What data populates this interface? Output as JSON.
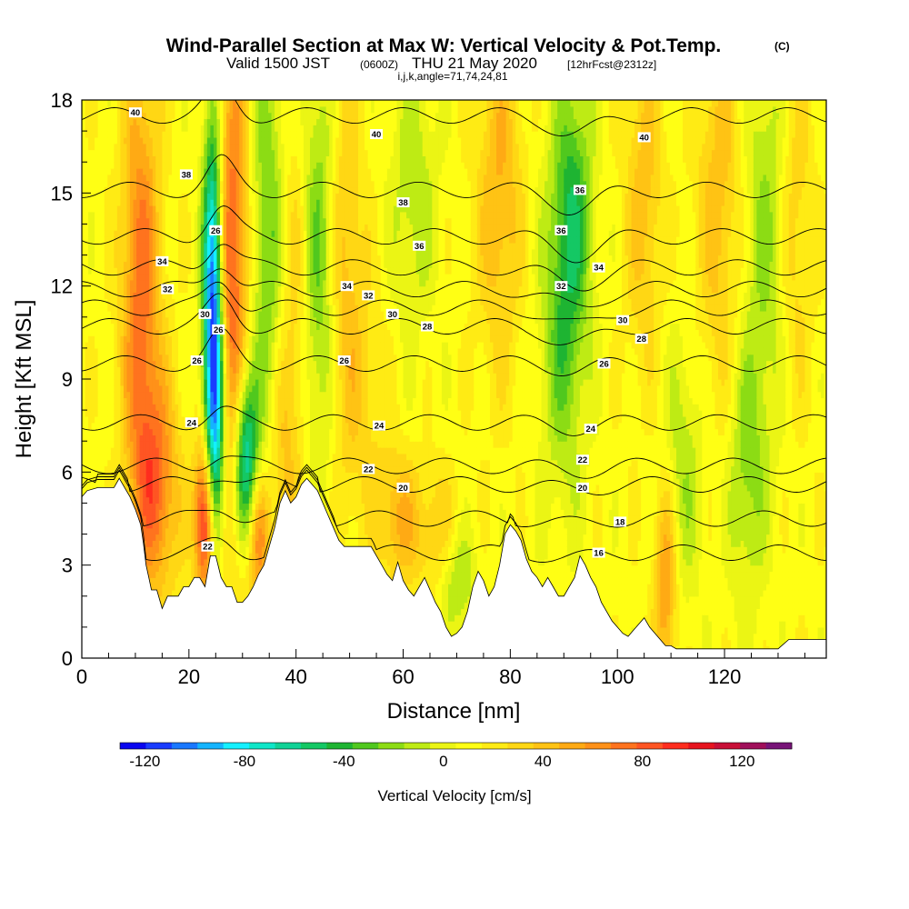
{
  "header": {
    "title": "Wind-Parallel Section at Max W: Vertical Velocity & Pot.Temp.",
    "copyright_mark": "(C)",
    "valid_prefix": "Valid 1500 JST",
    "valid_utc": "(0600Z)",
    "valid_date": "THU 21 May 2020",
    "forecast_info": "[12hrFcst@2312z]",
    "indices": "i,j,k,angle=71,74,24,81"
  },
  "colors": {
    "velocity_scale": [
      "#0a06f0",
      "#1a3cff",
      "#1a78ff",
      "#14b4ff",
      "#14f0ff",
      "#0ee6c8",
      "#10d296",
      "#14c864",
      "#1eb432",
      "#50c81e",
      "#8cdc14",
      "#beeb14",
      "#ebf514",
      "#ffff14",
      "#ffeb14",
      "#ffd714",
      "#ffc314",
      "#ffaa14",
      "#ff9119",
      "#ff731e",
      "#ff5523",
      "#ff2d1e",
      "#e6141e",
      "#c80f37",
      "#a00f5a",
      "#781478"
    ],
    "contour_line": "#000000",
    "terrain": "#ffffff"
  },
  "chart_data": {
    "type": "heatmap",
    "xlabel": "Distance [nm]",
    "ylabel": "Height [Kft MSL]",
    "xlim": [
      0,
      139
    ],
    "ylim": [
      0,
      18
    ],
    "x_ticks": [
      0,
      20,
      40,
      60,
      80,
      100,
      120
    ],
    "y_ticks": [
      0,
      3,
      6,
      9,
      12,
      15,
      18
    ],
    "colorbar": {
      "label": "Vertical Velocity [cm/s]",
      "range": [
        -130,
        140
      ],
      "step": 10,
      "tick_values": [
        -120,
        -80,
        -40,
        0,
        40,
        80,
        120
      ],
      "tick_labels": [
        "-120",
        "-80",
        "-40",
        "0",
        "40",
        "80",
        "120"
      ]
    },
    "velocity_features": [
      {
        "x": 11,
        "z": 12,
        "w": 60,
        "sx": 2.5,
        "sz": 5
      },
      {
        "x": 14,
        "z": 5.5,
        "w": 55,
        "sx": 3,
        "sz": 2.5
      },
      {
        "x": 23,
        "z": 4.5,
        "w": 100,
        "sx": 1.3,
        "sz": 1.8
      },
      {
        "x": 24.5,
        "z": 12,
        "w": -115,
        "sx": 1.3,
        "sz": 4
      },
      {
        "x": 25,
        "z": 7,
        "w": -75,
        "sx": 1.4,
        "sz": 3
      },
      {
        "x": 28,
        "z": 12,
        "w": 70,
        "sx": 2.2,
        "sz": 6
      },
      {
        "x": 30.5,
        "z": 6.5,
        "w": -90,
        "sx": 1.6,
        "sz": 2
      },
      {
        "x": 33,
        "z": 3.8,
        "w": 55,
        "sx": 1.5,
        "sz": 1.5
      },
      {
        "x": 35,
        "z": 13,
        "w": -40,
        "sx": 2.5,
        "sz": 6
      },
      {
        "x": 37,
        "z": 6,
        "w": 30,
        "sx": 2,
        "sz": 3
      },
      {
        "x": 40,
        "z": 12,
        "w": 30,
        "sx": 2.5,
        "sz": 5
      },
      {
        "x": 44,
        "z": 13,
        "w": -45,
        "sx": 2.5,
        "sz": 5
      },
      {
        "x": 49,
        "z": 13,
        "w": 30,
        "sx": 2.5,
        "sz": 5
      },
      {
        "x": 53,
        "z": 8,
        "w": 15,
        "sx": 3,
        "sz": 3
      },
      {
        "x": 59,
        "z": 4.5,
        "w": 35,
        "sx": 2.5,
        "sz": 1.5
      },
      {
        "x": 62,
        "z": 15,
        "w": -25,
        "sx": 3,
        "sz": 3
      },
      {
        "x": 66,
        "z": 4,
        "w": 25,
        "sx": 3,
        "sz": 1.5
      },
      {
        "x": 70,
        "z": 2.5,
        "w": -30,
        "sx": 2.5,
        "sz": 1.2
      },
      {
        "x": 78,
        "z": 15,
        "w": 35,
        "sx": 3,
        "sz": 4
      },
      {
        "x": 90,
        "z": 11,
        "w": -40,
        "sx": 3,
        "sz": 4
      },
      {
        "x": 92,
        "z": 15,
        "w": -35,
        "sx": 2.5,
        "sz": 3
      },
      {
        "x": 105,
        "z": 15,
        "w": 30,
        "sx": 2.5,
        "sz": 4
      },
      {
        "x": 109,
        "z": 2.5,
        "w": 50,
        "sx": 1.5,
        "sz": 2.5
      },
      {
        "x": 112,
        "z": 6,
        "w": -25,
        "sx": 3,
        "sz": 3
      },
      {
        "x": 119,
        "z": 15,
        "w": 30,
        "sx": 3,
        "sz": 5
      },
      {
        "x": 124,
        "z": 6,
        "w": -30,
        "sx": 2.5,
        "sz": 3
      },
      {
        "x": 128,
        "z": 14,
        "w": -30,
        "sx": 3,
        "sz": 5
      },
      {
        "x": 133,
        "z": 14,
        "w": 25,
        "sx": 2.5,
        "sz": 4
      }
    ],
    "terrain_profile": {
      "x": [
        0,
        1,
        3,
        6,
        7,
        8,
        9,
        10,
        11,
        11.5,
        12,
        12.5,
        13,
        14,
        15,
        16,
        17,
        18,
        19,
        20,
        21,
        22,
        23,
        24,
        25,
        26,
        27,
        28,
        29,
        30,
        31,
        32,
        33,
        34,
        35,
        36,
        37,
        38,
        39,
        40,
        41,
        42,
        43,
        44,
        45,
        46,
        47,
        48,
        49,
        50,
        51,
        52,
        53,
        54,
        55,
        56,
        57,
        58,
        59,
        60,
        61,
        62,
        63,
        64,
        65,
        66,
        67,
        68,
        69,
        70,
        71,
        72,
        73,
        74,
        75,
        76,
        77,
        78,
        79,
        80,
        81,
        82,
        83,
        84,
        85,
        86,
        87,
        88,
        89,
        90,
        91,
        92,
        93,
        94,
        95,
        96,
        97,
        98,
        99,
        100,
        101,
        102,
        103,
        104,
        105,
        106,
        107,
        108,
        109,
        110,
        111,
        112,
        114,
        116,
        118,
        120,
        122,
        124,
        126,
        128,
        130,
        132,
        134,
        136,
        139
      ],
      "z": [
        5.2,
        5.4,
        5.5,
        5.5,
        5.8,
        5.5,
        5.2,
        4.8,
        4.3,
        3.7,
        3.0,
        2.6,
        2.2,
        2.2,
        1.6,
        2.0,
        2.0,
        2.0,
        2.3,
        2.3,
        2.6,
        2.6,
        2.3,
        3.3,
        3.3,
        2.6,
        2.3,
        2.3,
        1.8,
        1.8,
        2.0,
        2.3,
        2.7,
        3.0,
        3.6,
        4.2,
        5.0,
        5.4,
        5.0,
        5.2,
        5.6,
        5.8,
        5.6,
        5.4,
        5.0,
        4.6,
        4.2,
        3.8,
        3.6,
        3.6,
        3.6,
        3.6,
        3.6,
        3.6,
        3.3,
        3.0,
        2.7,
        2.5,
        3.1,
        2.5,
        2.2,
        2.0,
        2.3,
        2.6,
        2.2,
        1.8,
        1.5,
        1.0,
        0.7,
        0.8,
        1.0,
        1.5,
        2.3,
        2.8,
        2.5,
        2.0,
        2.3,
        3.0,
        4.0,
        4.3,
        4.1,
        3.8,
        3.2,
        2.8,
        2.6,
        2.3,
        2.6,
        2.3,
        2.0,
        2.0,
        2.3,
        2.6,
        3.3,
        3.0,
        2.6,
        2.3,
        1.8,
        1.5,
        1.2,
        1.0,
        0.8,
        0.7,
        0.9,
        1.1,
        1.3,
        1.0,
        0.8,
        0.6,
        0.4,
        0.4,
        0.3,
        0.3,
        0.3,
        0.3,
        0.3,
        0.3,
        0.3,
        0.3,
        0.3,
        0.3,
        0.3,
        0.6,
        0.6,
        0.6,
        0.6
      ]
    },
    "theta_contours": {
      "levels": [
        16,
        18,
        20,
        22,
        24,
        26,
        28,
        30,
        32,
        34,
        36,
        38,
        40
      ],
      "baseline_height": [
        3.4,
        4.5,
        5.6,
        6.2,
        7.6,
        9.5,
        10.7,
        11.3,
        11.9,
        12.6,
        13.6,
        15.1,
        17.5
      ],
      "label_points": [
        {
          "text": "40",
          "x": 10,
          "z": 17.6
        },
        {
          "text": "38",
          "x": 19.5,
          "z": 15.6
        },
        {
          "text": "34",
          "x": 15,
          "z": 12.8
        },
        {
          "text": "32",
          "x": 16,
          "z": 11.9
        },
        {
          "text": "30",
          "x": 23,
          "z": 11.1
        },
        {
          "text": "26",
          "x": 21.5,
          "z": 9.6
        },
        {
          "text": "24",
          "x": 20.5,
          "z": 7.6
        },
        {
          "text": "22",
          "x": 23.5,
          "z": 3.6
        },
        {
          "text": "26",
          "x": 25,
          "z": 13.8
        },
        {
          "text": "26",
          "x": 25.5,
          "z": 10.6
        },
        {
          "text": "40",
          "x": 55,
          "z": 16.9
        },
        {
          "text": "38",
          "x": 60,
          "z": 14.7
        },
        {
          "text": "36",
          "x": 63,
          "z": 13.3
        },
        {
          "text": "34",
          "x": 49.5,
          "z": 12.0
        },
        {
          "text": "32",
          "x": 53.5,
          "z": 11.7
        },
        {
          "text": "30",
          "x": 58,
          "z": 11.1
        },
        {
          "text": "28",
          "x": 64.5,
          "z": 10.7
        },
        {
          "text": "26",
          "x": 49,
          "z": 9.6
        },
        {
          "text": "24",
          "x": 55.5,
          "z": 7.5
        },
        {
          "text": "22",
          "x": 53.5,
          "z": 6.1
        },
        {
          "text": "20",
          "x": 60,
          "z": 5.5
        },
        {
          "text": "40",
          "x": 105,
          "z": 16.8
        },
        {
          "text": "36",
          "x": 93,
          "z": 15.1
        },
        {
          "text": "36",
          "x": 89.5,
          "z": 13.8
        },
        {
          "text": "34",
          "x": 96.5,
          "z": 12.6
        },
        {
          "text": "32",
          "x": 89.5,
          "z": 12.0
        },
        {
          "text": "30",
          "x": 101,
          "z": 10.9
        },
        {
          "text": "28",
          "x": 104.5,
          "z": 10.3
        },
        {
          "text": "26",
          "x": 97.5,
          "z": 9.5
        },
        {
          "text": "24",
          "x": 95,
          "z": 7.4
        },
        {
          "text": "22",
          "x": 93.5,
          "z": 6.4
        },
        {
          "text": "20",
          "x": 93.5,
          "z": 5.5
        },
        {
          "text": "18",
          "x": 100.5,
          "z": 4.4
        },
        {
          "text": "16",
          "x": 96.5,
          "z": 3.4
        }
      ]
    }
  }
}
